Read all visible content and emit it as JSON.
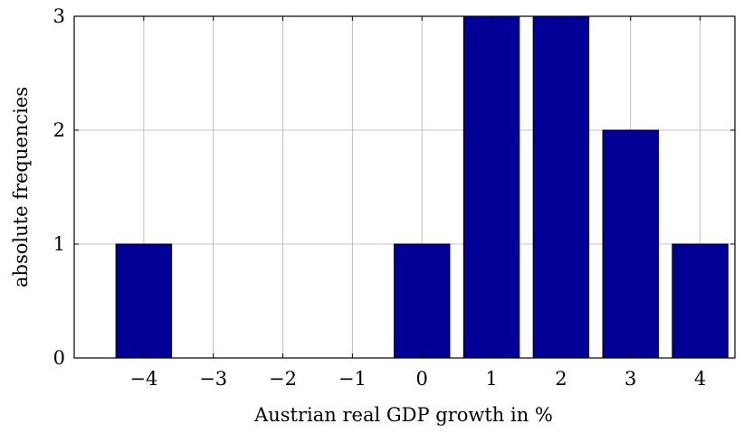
{
  "chart_data": {
    "type": "bar",
    "title": "",
    "xlabel": "Austrian real GDP growth in %",
    "ylabel": "absolute frequencies",
    "categories": [
      "−4",
      "−3",
      "−2",
      "−1",
      "0",
      "1",
      "2",
      "3",
      "4"
    ],
    "x": [
      -4,
      -3,
      -2,
      -1,
      0,
      1,
      2,
      3,
      4
    ],
    "values": [
      1,
      0,
      0,
      0,
      1,
      3,
      3,
      2,
      1
    ],
    "y_ticks": [
      "0",
      "1",
      "2",
      "3"
    ],
    "xlim": [
      -5,
      4.5
    ],
    "ylim": [
      0,
      3
    ],
    "grid": true,
    "legend": "none",
    "colors": {
      "bar_fill": "#000096",
      "bar_stroke": "#000000",
      "grid": "#b3b3b3",
      "axis": "#000000"
    }
  }
}
